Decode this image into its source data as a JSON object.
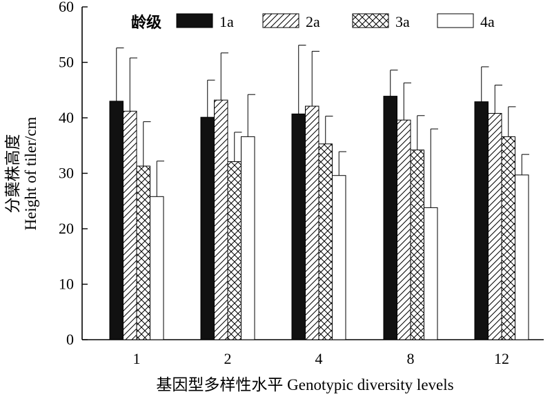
{
  "chart_data": {
    "type": "bar",
    "categories": [
      "1",
      "2",
      "4",
      "8",
      "12"
    ],
    "series": [
      {
        "name": "1a",
        "pattern": "solid",
        "values": [
          43.0,
          40.1,
          40.7,
          43.9,
          42.9
        ],
        "errors": [
          9.6,
          6.7,
          12.4,
          4.7,
          6.3
        ]
      },
      {
        "name": "2a",
        "pattern": "diagonal",
        "values": [
          41.2,
          43.2,
          42.1,
          39.6,
          40.8
        ],
        "errors": [
          9.6,
          8.5,
          9.9,
          6.7,
          5.1
        ]
      },
      {
        "name": "3a",
        "pattern": "crosshatch",
        "values": [
          31.3,
          32.1,
          35.3,
          34.2,
          36.6
        ],
        "errors": [
          8.0,
          5.3,
          5.0,
          6.2,
          5.4
        ]
      },
      {
        "name": "4a",
        "pattern": "empty",
        "values": [
          25.8,
          36.6,
          29.6,
          23.8,
          29.7
        ],
        "errors": [
          6.4,
          7.6,
          4.3,
          14.2,
          3.7
        ]
      }
    ],
    "legend_title": "龄级",
    "ylabel_cn": "分蘖株高度",
    "ylabel_en": "Height of tiler/cm",
    "xlabel": "基因型多样性水平 Genotypic diversity levels",
    "ylim": [
      0,
      60
    ],
    "yticks": [
      0,
      10,
      20,
      30,
      40,
      50,
      60
    ],
    "grid": false,
    "legend_position": "top"
  }
}
